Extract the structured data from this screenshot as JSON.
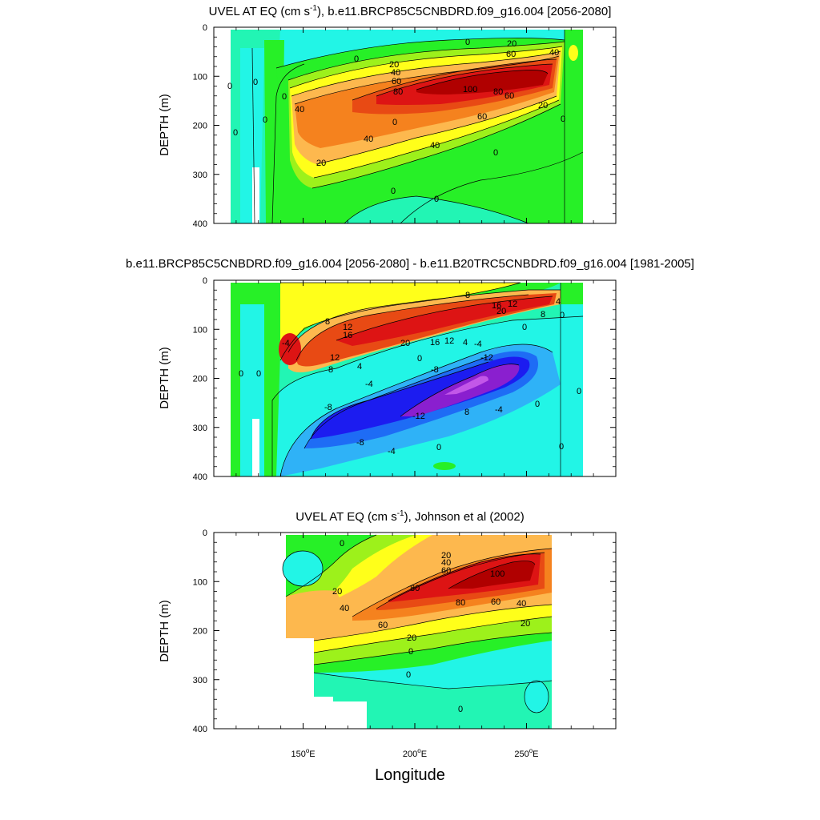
{
  "chart_data": [
    {
      "type": "heatmap",
      "title": "UVEL AT EQ (cm s-1), b.e11.BRCP85C5CNBDRD.f09_g16.004 [2056-2080]",
      "title_parts": [
        "UVEL AT EQ (cm s",
        "-1",
        "), b.e11.BRCP85C5CNBDRD.f09_g16.004 [2056-2080]"
      ],
      "ylabel": "DEPTH (m)",
      "xlim": [
        110,
        290
      ],
      "ylim": [
        400,
        0
      ],
      "yticks": [
        "0",
        "100",
        "200",
        "300",
        "400"
      ],
      "contour_labels": [
        "0",
        "20",
        "60",
        "40",
        "0",
        "20",
        "40",
        "60",
        "80",
        "100",
        "80",
        "60",
        "20",
        "0",
        "40",
        "0",
        "60",
        "40",
        "40",
        "20",
        "20",
        "0",
        "0",
        "0",
        "0",
        "0",
        "0",
        "0",
        "0"
      ],
      "core_value_max": 100,
      "units": "cm s-1"
    },
    {
      "type": "heatmap",
      "title": "b.e11.BRCP85C5CNBDRD.f09_g16.004 [2056-2080] - b.e11.B20TRC5CNBDRD.f09_g16.004 [1981-2005]",
      "ylabel": "DEPTH (m)",
      "xlim": [
        110,
        290
      ],
      "ylim": [
        400,
        0
      ],
      "yticks": [
        "0",
        "100",
        "200",
        "300",
        "400"
      ],
      "contour_labels": [
        "8",
        "16",
        "12",
        "20",
        "4",
        "8",
        "8",
        "12",
        "16",
        "-4",
        "12",
        "8",
        "20",
        "16",
        "12",
        "4",
        "-4",
        "0",
        "4",
        "0",
        "-12",
        "-8",
        "-4",
        "-8",
        "-12",
        "8",
        "-4",
        "-8",
        "-4",
        "0",
        "0",
        "0",
        "0",
        "0",
        "0",
        "0"
      ],
      "units": "cm s-1"
    },
    {
      "type": "heatmap",
      "title": "UVEL AT EQ (cm s-1), Johnson et al (2002)",
      "title_parts": [
        "UVEL AT EQ (cm s",
        "-1",
        "), Johnson et al (2002)"
      ],
      "ylabel": "DEPTH (m)",
      "xlabel": "Longitude",
      "xlim": [
        110,
        290
      ],
      "ylim": [
        400,
        0
      ],
      "yticks": [
        "0",
        "100",
        "200",
        "300",
        "400"
      ],
      "xticks": [
        {
          "value": 150,
          "label": "150",
          "suffix": "o",
          "hemi": "E"
        },
        {
          "value": 200,
          "label": "200",
          "suffix": "o",
          "hemi": "E"
        },
        {
          "value": 250,
          "label": "250",
          "suffix": "o",
          "hemi": "E"
        }
      ],
      "contour_labels": [
        "0",
        "20",
        "40",
        "60",
        "100",
        "80",
        "80",
        "60",
        "20",
        "40",
        "60",
        "40",
        "20",
        "20",
        "0",
        "0",
        "0"
      ],
      "units": "cm s-1"
    }
  ],
  "colors": {
    "strong_neg": "#8a1fcf",
    "neg3": "#1c1cf0",
    "neg2": "#1e6cf5",
    "neg1": "#2fb2f7",
    "zero_a": "#22f5e6",
    "zero_b": "#22f5b4",
    "pos1": "#27f027",
    "pos2": "#9df11b",
    "pos3": "#ffff1a",
    "pos4": "#fdb84e",
    "pos5": "#f5821e",
    "pos6": "#e84a14",
    "pos7": "#dd1414",
    "pos8": "#b00000"
  }
}
